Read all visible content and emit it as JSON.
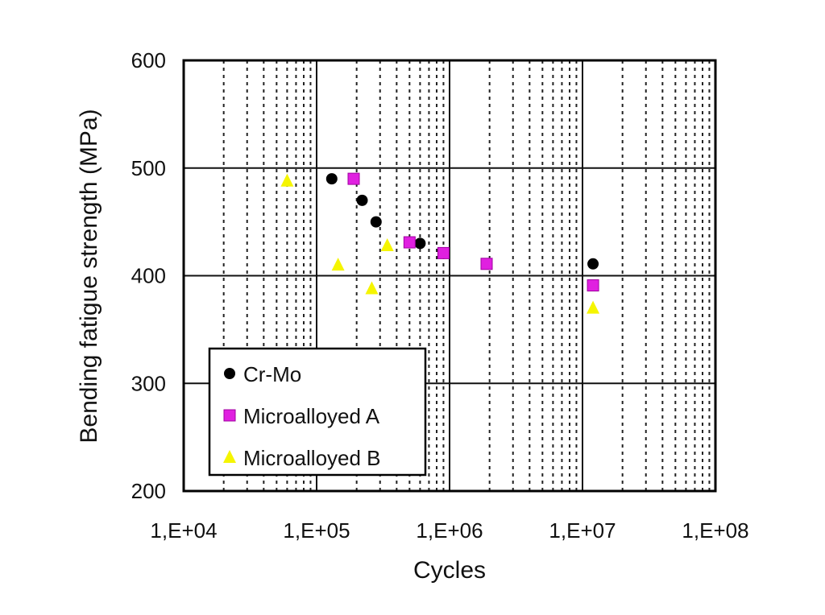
{
  "chart_data": {
    "type": "scatter",
    "title": "",
    "xlabel": "Cycles",
    "ylabel": "Bending fatigue strength (MPa)",
    "x_scale": "log",
    "xlim": [
      10000,
      100000000
    ],
    "ylim": [
      200,
      600
    ],
    "x_tick_labels": [
      "1,E+04",
      "1,E+05",
      "1,E+06",
      "1,E+07",
      "1,E+08"
    ],
    "x_ticks": [
      10000,
      100000,
      1000000,
      10000000,
      100000000
    ],
    "y_ticks": [
      200,
      300,
      400,
      500,
      600
    ],
    "y_tick_labels": [
      "200",
      "300",
      "400",
      "500",
      "600"
    ],
    "grid": true,
    "legend_position": "bottom-left",
    "series": [
      {
        "name": "Cr-Mo",
        "color": "#000000",
        "marker": "circle",
        "points": [
          {
            "x": 130000,
            "y": 490
          },
          {
            "x": 220000,
            "y": 470
          },
          {
            "x": 280000,
            "y": 450
          },
          {
            "x": 600000,
            "y": 430
          },
          {
            "x": 12000000,
            "y": 411
          }
        ]
      },
      {
        "name": "Microalloyed A",
        "color": "#e020e0",
        "marker": "square",
        "points": [
          {
            "x": 190000,
            "y": 490
          },
          {
            "x": 500000,
            "y": 431
          },
          {
            "x": 900000,
            "y": 421
          },
          {
            "x": 1900000,
            "y": 411
          },
          {
            "x": 12000000,
            "y": 391
          }
        ]
      },
      {
        "name": "Microalloyed B",
        "color": "#f5f500",
        "marker": "triangle",
        "points": [
          {
            "x": 60000,
            "y": 488
          },
          {
            "x": 145000,
            "y": 410
          },
          {
            "x": 260000,
            "y": 388
          },
          {
            "x": 340000,
            "y": 428
          },
          {
            "x": 12000000,
            "y": 370
          }
        ]
      }
    ]
  }
}
